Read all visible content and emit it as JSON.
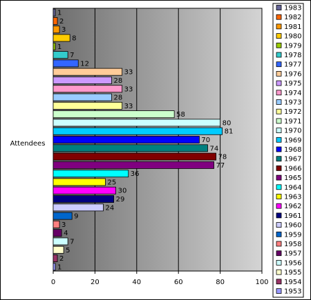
{
  "chart_data": {
    "type": "bar",
    "orientation": "horizontal",
    "category_label": "Attendees",
    "xlim": [
      0,
      100
    ],
    "x_ticks": [
      "0",
      "20",
      "40",
      "60",
      "80",
      "100"
    ],
    "grid": true,
    "legend_position": "right",
    "series": [
      {
        "name": "1953",
        "value": 1,
        "color": "#9999ff"
      },
      {
        "name": "1954",
        "value": 2,
        "color": "#993366"
      },
      {
        "name": "1955",
        "value": 5,
        "color": "#ffffcc"
      },
      {
        "name": "1956",
        "value": 7,
        "color": "#ccffff"
      },
      {
        "name": "1957",
        "value": 4,
        "color": "#660066"
      },
      {
        "name": "1958",
        "value": 3,
        "color": "#ff8080"
      },
      {
        "name": "1959",
        "value": 9,
        "color": "#0066cc"
      },
      {
        "name": "1960",
        "value": 24,
        "color": "#ccccff"
      },
      {
        "name": "1961",
        "value": 29,
        "color": "#000080"
      },
      {
        "name": "1962",
        "value": 30,
        "color": "#ff00ff"
      },
      {
        "name": "1963",
        "value": 25,
        "color": "#ffff00"
      },
      {
        "name": "1964",
        "value": 36,
        "color": "#00ffff"
      },
      {
        "name": "1965",
        "value": 77,
        "color": "#800080"
      },
      {
        "name": "1966",
        "value": 78,
        "color": "#800000"
      },
      {
        "name": "1967",
        "value": 74,
        "color": "#008080"
      },
      {
        "name": "1968",
        "value": 70,
        "color": "#0000ff"
      },
      {
        "name": "1969",
        "value": 81,
        "color": "#00ccff"
      },
      {
        "name": "1970",
        "value": 80,
        "color": "#ccffff"
      },
      {
        "name": "1971",
        "value": 58,
        "color": "#ccffcc"
      },
      {
        "name": "1972",
        "value": 33,
        "color": "#ffff99"
      },
      {
        "name": "1973",
        "value": 28,
        "color": "#99ccff"
      },
      {
        "name": "1974",
        "value": 33,
        "color": "#ff99cc"
      },
      {
        "name": "1975",
        "value": 28,
        "color": "#cc99ff"
      },
      {
        "name": "1976",
        "value": 33,
        "color": "#ffcc99"
      },
      {
        "name": "1977",
        "value": 12,
        "color": "#3366ff"
      },
      {
        "name": "1978",
        "value": 7,
        "color": "#33cccc"
      },
      {
        "name": "1979",
        "value": 1,
        "color": "#99cc00"
      },
      {
        "name": "1980",
        "value": 8,
        "color": "#ffcc00"
      },
      {
        "name": "1981",
        "value": 3,
        "color": "#ff9900"
      },
      {
        "name": "1982",
        "value": 2,
        "color": "#ff6600"
      },
      {
        "name": "1983",
        "value": 1,
        "color": "#666699"
      }
    ]
  }
}
